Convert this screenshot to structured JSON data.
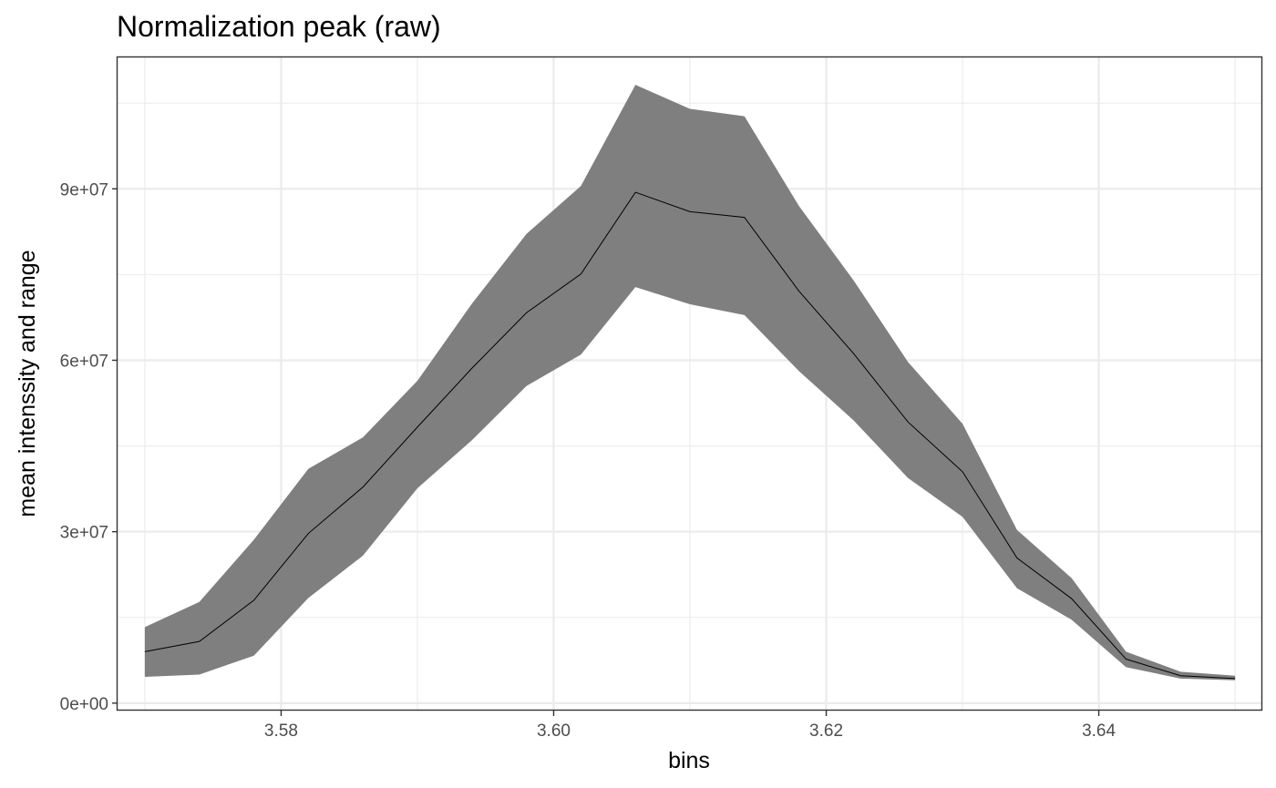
{
  "chart_data": {
    "type": "area",
    "title": "Normalization peak (raw)",
    "xlabel": "bins",
    "ylabel": "mean intenssity and range",
    "xlim": [
      3.568,
      3.652
    ],
    "ylim": [
      -1300000,
      113000000
    ],
    "x_ticks": [
      3.58,
      3.6,
      3.62,
      3.64
    ],
    "x_tick_labels": [
      "3.58",
      "3.60",
      "3.62",
      "3.64"
    ],
    "y_ticks": [
      0,
      30000000,
      60000000,
      90000000
    ],
    "y_tick_labels": [
      "0e+00",
      "3e+07",
      "6e+07",
      "9e+07"
    ],
    "grid": true,
    "ribbon_color": "#7f7f7f",
    "line_color": "#000000",
    "x": [
      3.57,
      3.574,
      3.578,
      3.582,
      3.586,
      3.59,
      3.594,
      3.598,
      3.602,
      3.606,
      3.61,
      3.614,
      3.618,
      3.622,
      3.626,
      3.63,
      3.634,
      3.638,
      3.642,
      3.646,
      3.65
    ],
    "series": [
      {
        "values": [
          9000000,
          10800000,
          18000000,
          29700000,
          37800000,
          48300000,
          58600000,
          68300000,
          75100000,
          89400000,
          86000000,
          85000000,
          72100000,
          61200000,
          49200000,
          40500000,
          25400000,
          18300000,
          7700000,
          4800000,
          4300000
        ]
      },
      {
        "values": [
          13300000,
          17700000,
          28600000,
          41000000,
          46500000,
          56400000,
          69900000,
          82100000,
          90500000,
          108200000,
          104000000,
          102700000,
          87000000,
          74000000,
          59700000,
          48900000,
          30300000,
          21900000,
          9000000,
          5500000,
          4800000
        ]
      },
      {
        "values": [
          4600000,
          5000000,
          8300000,
          18400000,
          25800000,
          37600000,
          46000000,
          55500000,
          61000000,
          72800000,
          69800000,
          67900000,
          58100000,
          49500000,
          39400000,
          32600000,
          20100000,
          14600000,
          6300000,
          4300000,
          4000000
        ]
      }
    ]
  }
}
